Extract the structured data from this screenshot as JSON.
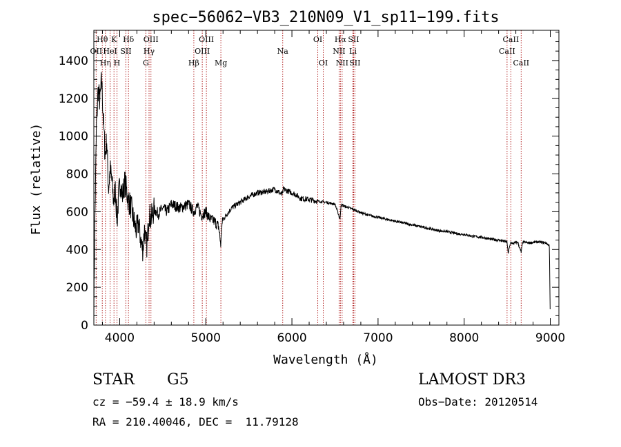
{
  "chart_data": {
    "type": "line",
    "title": "spec−56062−VB3_210N09_V1_sp11−199.fits",
    "xlabel": "Wavelength (Å)",
    "ylabel": "Flux (relative)",
    "xlim": [
      3700,
      9100
    ],
    "ylim": [
      0,
      1560
    ],
    "xticks": [
      4000,
      5000,
      6000,
      7000,
      8000,
      9000
    ],
    "yticks": [
      0,
      200,
      400,
      600,
      800,
      1000,
      1200,
      1400
    ],
    "grid": false,
    "series": [
      {
        "name": "spectrum",
        "x": [
          3700,
          3710,
          3730,
          3750,
          3770,
          3790,
          3810,
          3830,
          3850,
          3870,
          3890,
          3910,
          3930,
          3950,
          3970,
          3990,
          4010,
          4030,
          4060,
          4100,
          4130,
          4160,
          4190,
          4220,
          4250,
          4270,
          4290,
          4300,
          4320,
          4340,
          4360,
          4400,
          4450,
          4500,
          4550,
          4600,
          4700,
          4800,
          4860,
          4900,
          4950,
          5000,
          5050,
          5100,
          5150,
          5175,
          5185,
          5200,
          5250,
          5300,
          5400,
          5500,
          5600,
          5700,
          5800,
          5890,
          5900,
          5950,
          6000,
          6050,
          6100,
          6200,
          6300,
          6400,
          6500,
          6560,
          6570,
          6600,
          6700,
          6800,
          6900,
          7000,
          7100,
          7200,
          7300,
          7400,
          7500,
          7600,
          7700,
          7800,
          7900,
          8000,
          8100,
          8200,
          8300,
          8400,
          8498,
          8510,
          8542,
          8560,
          8620,
          8662,
          8680,
          8750,
          8850,
          8950,
          8990,
          9000
        ],
        "values": [
          50,
          480,
          1050,
          1250,
          1180,
          1300,
          1100,
          900,
          980,
          720,
          820,
          760,
          650,
          720,
          550,
          700,
          760,
          680,
          760,
          660,
          630,
          560,
          500,
          540,
          430,
          400,
          520,
          440,
          420,
          600,
          560,
          610,
          590,
          620,
          600,
          640,
          620,
          640,
          600,
          630,
          580,
          600,
          560,
          550,
          520,
          420,
          520,
          560,
          590,
          620,
          650,
          680,
          700,
          705,
          720,
          690,
          720,
          710,
          700,
          690,
          670,
          665,
          655,
          650,
          640,
          560,
          640,
          630,
          615,
          595,
          580,
          570,
          560,
          550,
          540,
          530,
          520,
          510,
          500,
          495,
          485,
          480,
          470,
          465,
          455,
          450,
          440,
          380,
          440,
          430,
          440,
          385,
          440,
          435,
          440,
          435,
          420,
          0
        ]
      }
    ],
    "lines": [
      {
        "name": "OII",
        "x": 3727,
        "label": "OII",
        "row": 1
      },
      {
        "name": "H-theta",
        "x": 3798,
        "label": "Hθ",
        "row": 0
      },
      {
        "name": "H-eta",
        "x": 3835,
        "label": "Hη",
        "row": 2
      },
      {
        "name": "HeI",
        "x": 3889,
        "label": "HeI",
        "row": 1
      },
      {
        "name": "K",
        "x": 3934,
        "label": "K",
        "row": 0
      },
      {
        "name": "H",
        "x": 3969,
        "label": "H",
        "row": 2
      },
      {
        "name": "SII",
        "x": 4072,
        "label": "SII",
        "row": 1
      },
      {
        "name": "H-delta",
        "x": 4102,
        "label": "Hδ",
        "row": 0
      },
      {
        "name": "G",
        "x": 4304,
        "label": "G",
        "row": 2
      },
      {
        "name": "H-gamma",
        "x": 4341,
        "label": "Hγ",
        "row": 1
      },
      {
        "name": "OIII-4363",
        "x": 4363,
        "label": "OIII",
        "row": 0
      },
      {
        "name": "H-beta",
        "x": 4861,
        "label": "Hβ",
        "row": 2
      },
      {
        "name": "OIII-4959",
        "x": 4959,
        "label": "OIII",
        "row": 1
      },
      {
        "name": "OIII-5007",
        "x": 5007,
        "label": "OIII",
        "row": 0
      },
      {
        "name": "Mg",
        "x": 5175,
        "label": "Mg",
        "row": 2
      },
      {
        "name": "Na",
        "x": 5893,
        "label": "Na",
        "row": 1
      },
      {
        "name": "OI-6300",
        "x": 6300,
        "label": "OI",
        "row": 0
      },
      {
        "name": "OI-6364",
        "x": 6364,
        "label": "OI",
        "row": 2
      },
      {
        "name": "NII-6548",
        "x": 6548,
        "label": "NII",
        "row": 1
      },
      {
        "name": "H-alpha",
        "x": 6563,
        "label": "Hα",
        "row": 0
      },
      {
        "name": "NII-6583",
        "x": 6583,
        "label": "NII",
        "row": 2
      },
      {
        "name": "Li",
        "x": 6708,
        "label": "Li",
        "row": 1
      },
      {
        "name": "SII-6716",
        "x": 6716,
        "label": "SII",
        "row": 0
      },
      {
        "name": "SII-6731",
        "x": 6731,
        "label": "SII",
        "row": 2
      },
      {
        "name": "CaII-8498",
        "x": 8498,
        "label": "CaII",
        "row": 1
      },
      {
        "name": "CaII-8542",
        "x": 8542,
        "label": "CaII",
        "row": 0
      },
      {
        "name": "CaII-8662",
        "x": 8662,
        "label": "CaII",
        "row": 2
      }
    ]
  },
  "info": {
    "class": "STAR",
    "subclass": "G5",
    "survey": "LAMOST DR3",
    "cz": "cz = −59.4 ± 18.9 km/s",
    "obs_date": "Obs−Date: 20120514",
    "radec": "RA = 210.40046, DEC =  11.79128"
  },
  "colors": {
    "line_marker": "#b22222",
    "spectrum": "#000000"
  }
}
